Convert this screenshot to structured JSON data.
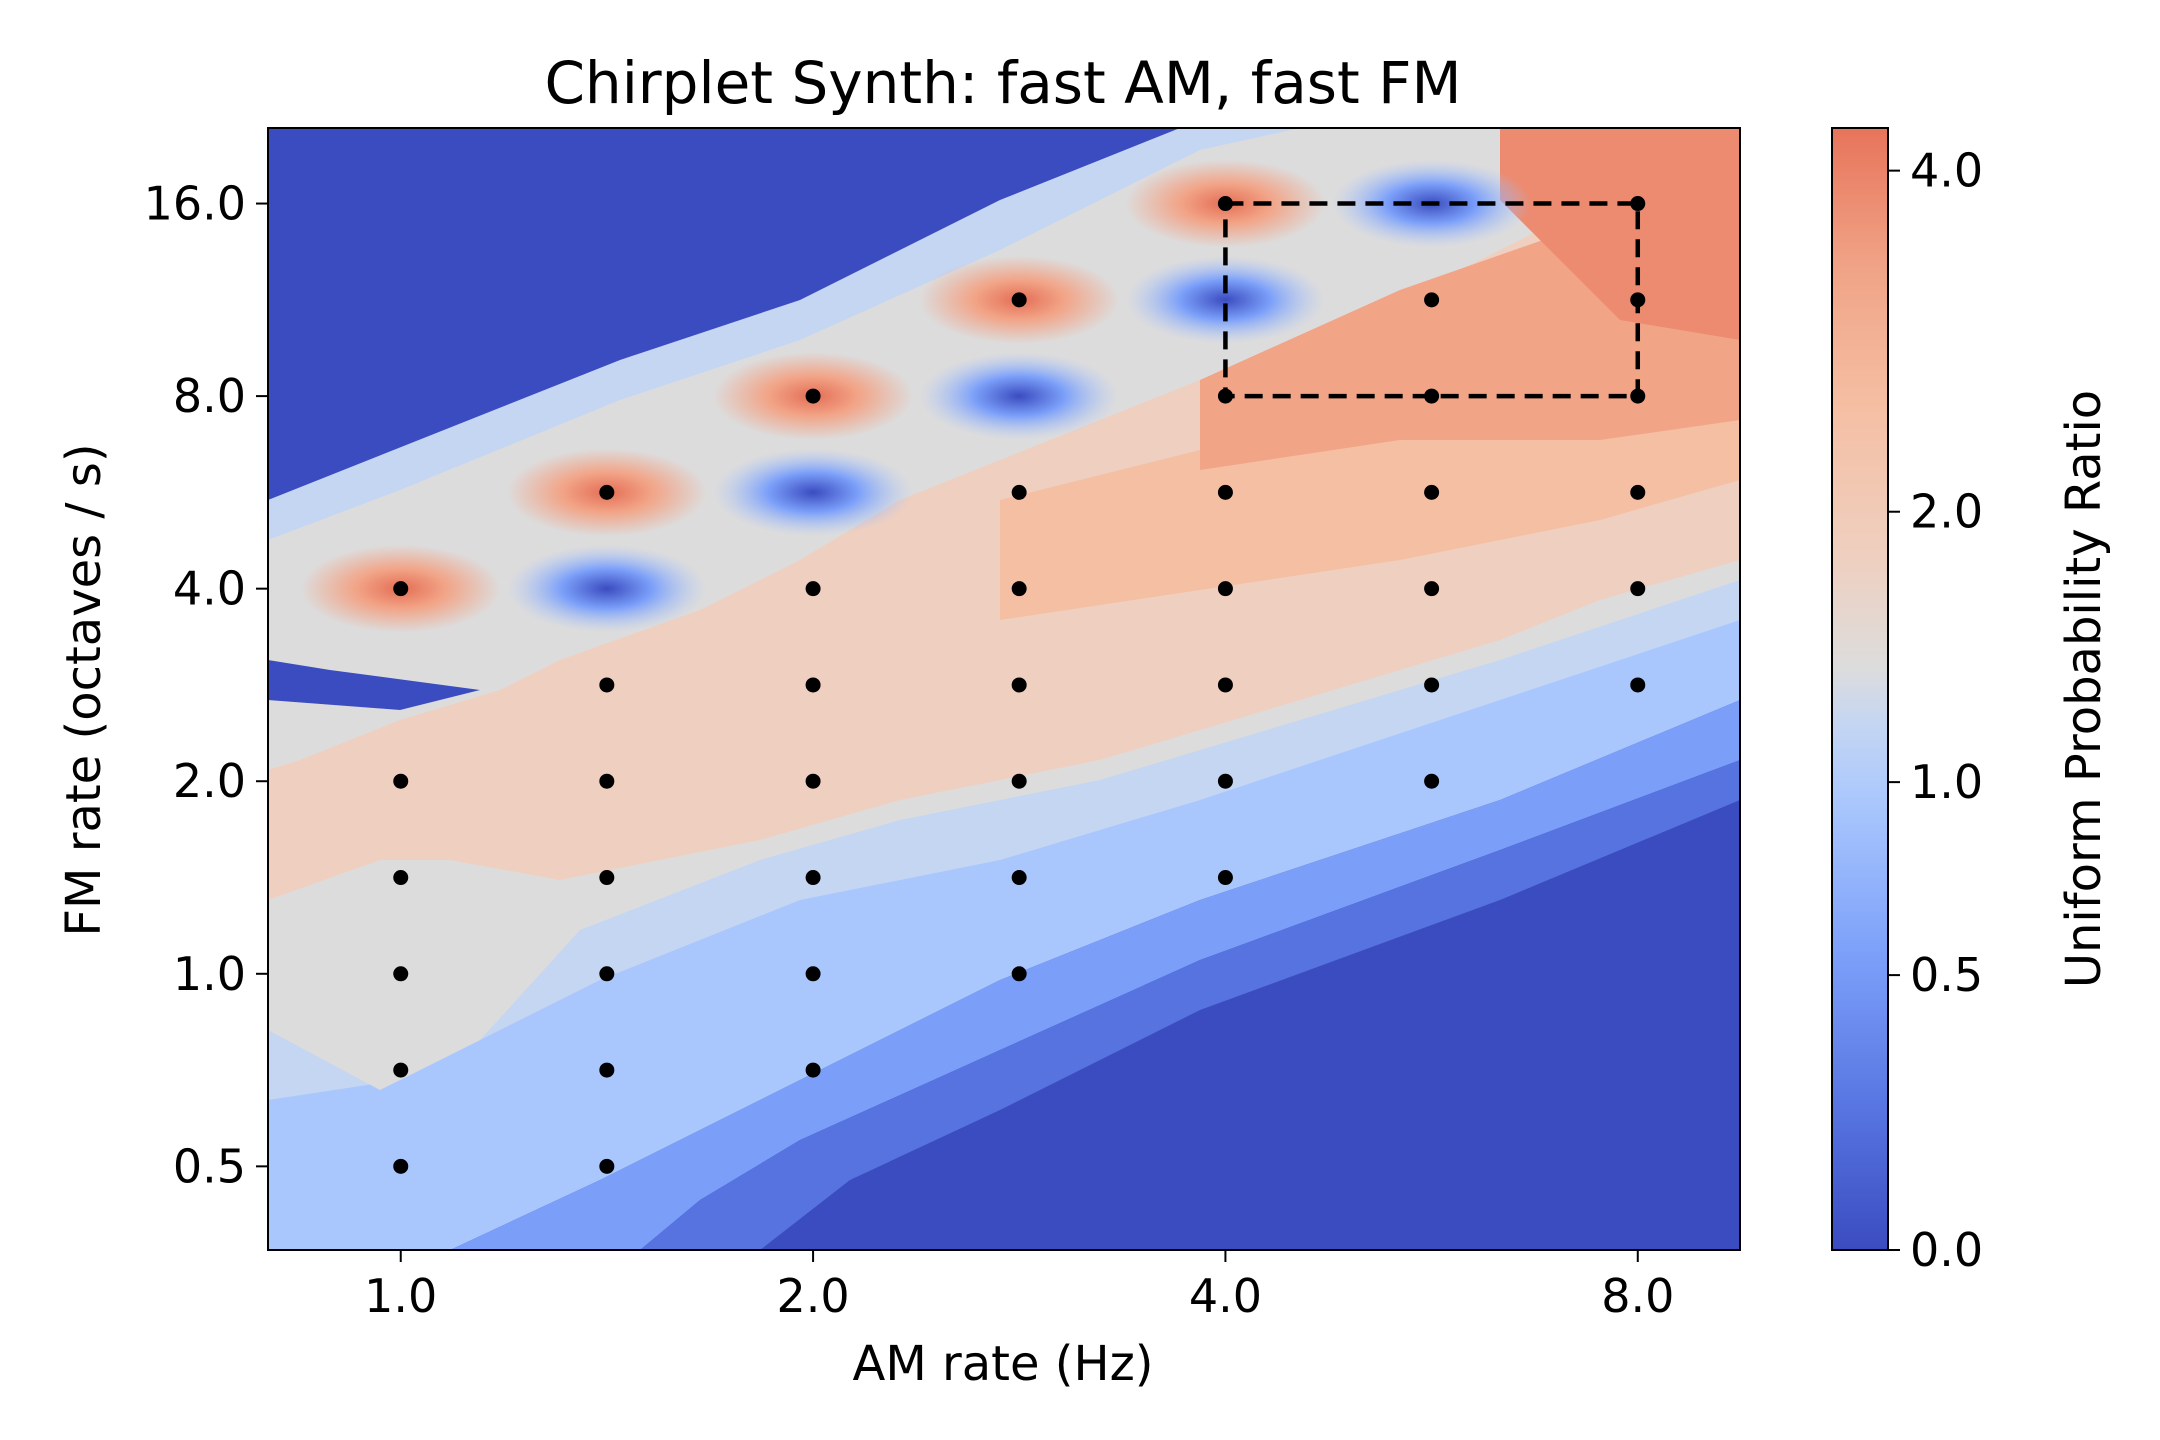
{
  "chart_data": {
    "type": "heatmap",
    "title": "Chirplet Synth: fast AM, fast FM",
    "xlabel": "AM rate (Hz)",
    "ylabel": "FM rate (octaves / s)",
    "x_scale": "log2",
    "y_scale": "log2",
    "x_range": [
      0.8,
      9.5
    ],
    "y_range": [
      0.37,
      21.0
    ],
    "x_ticks": [
      1.0,
      2.0,
      4.0,
      8.0
    ],
    "x_tick_labels": [
      "1.0",
      "2.0",
      "4.0",
      "8.0"
    ],
    "y_ticks": [
      0.5,
      1.0,
      2.0,
      4.0,
      8.0,
      16.0
    ],
    "y_tick_labels": [
      "0.5",
      "1.0",
      "2.0",
      "4.0",
      "8.0",
      "16.0"
    ],
    "colorbar": {
      "label": "Uniform Probability Ratio",
      "tick_values": [
        0.0,
        0.5,
        1.0,
        2.0,
        4.0
      ],
      "tick_labels": [
        "0.0",
        "0.5",
        "1.0",
        "2.0",
        "4.0"
      ],
      "colormap": [
        "#3b4cc0",
        "#6f92f3",
        "#aac7fd",
        "#dddcdc",
        "#f7b89c",
        "#e7745b"
      ]
    },
    "sample_points": [
      [
        1.0,
        0.5
      ],
      [
        1.0,
        0.707
      ],
      [
        1.0,
        1.0
      ],
      [
        1.0,
        1.414
      ],
      [
        1.0,
        2.0
      ],
      [
        1.0,
        4.0
      ],
      [
        1.414,
        0.5
      ],
      [
        1.414,
        0.707
      ],
      [
        1.414,
        1.0
      ],
      [
        1.414,
        1.414
      ],
      [
        1.414,
        2.0
      ],
      [
        1.414,
        2.828
      ],
      [
        1.414,
        5.657
      ],
      [
        2.0,
        0.707
      ],
      [
        2.0,
        1.0
      ],
      [
        2.0,
        1.414
      ],
      [
        2.0,
        2.0
      ],
      [
        2.0,
        2.828
      ],
      [
        2.0,
        4.0
      ],
      [
        2.0,
        8.0
      ],
      [
        2.828,
        1.0
      ],
      [
        2.828,
        1.414
      ],
      [
        2.828,
        2.0
      ],
      [
        2.828,
        2.828
      ],
      [
        2.828,
        4.0
      ],
      [
        2.828,
        5.657
      ],
      [
        2.828,
        11.314
      ],
      [
        4.0,
        1.414
      ],
      [
        4.0,
        2.0
      ],
      [
        4.0,
        2.828
      ],
      [
        4.0,
        4.0
      ],
      [
        4.0,
        5.657
      ],
      [
        4.0,
        8.0
      ],
      [
        4.0,
        16.0
      ],
      [
        5.657,
        2.0
      ],
      [
        5.657,
        2.828
      ],
      [
        5.657,
        4.0
      ],
      [
        5.657,
        5.657
      ],
      [
        5.657,
        8.0
      ],
      [
        5.657,
        11.314
      ],
      [
        8.0,
        2.828
      ],
      [
        8.0,
        4.0
      ],
      [
        8.0,
        5.657
      ],
      [
        8.0,
        8.0
      ],
      [
        8.0,
        11.314
      ],
      [
        8.0,
        16.0
      ]
    ],
    "highlight_box": {
      "x_range": [
        4.0,
        8.0
      ],
      "y_range": [
        8.0,
        16.0
      ],
      "style": "dashed"
    },
    "grid": false,
    "legend": "none"
  }
}
